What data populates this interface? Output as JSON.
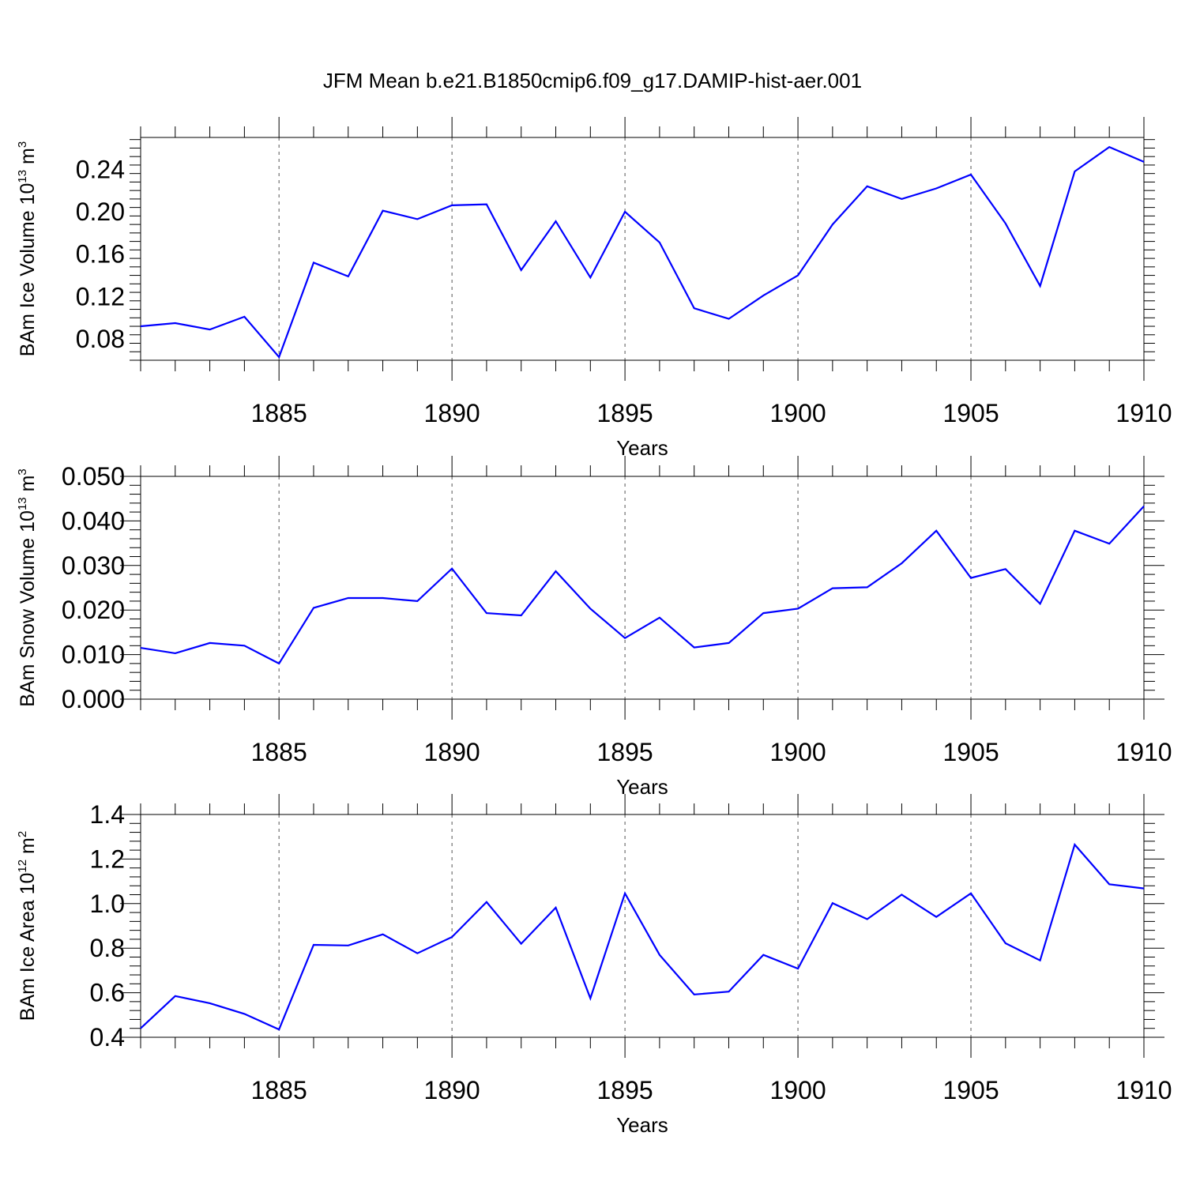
{
  "title": "JFM Mean b.e21.B1850cmip6.f09_g17.DAMIP-hist-aer.001",
  "colors": {
    "series": "#0000ff",
    "axes": "#000000",
    "grid": "#555555"
  },
  "chart_data": [
    {
      "type": "line",
      "ylabel_main": "BAm Ice Volume 10",
      "ylabel_exp": "13",
      "ylabel_unit": " m",
      "ylabel_unit_exp": "3",
      "xlabel": "Years",
      "xlim": [
        1881,
        1910
      ],
      "ylim": [
        0.06,
        0.27
      ],
      "yticks": [
        0.08,
        0.12,
        0.16,
        0.2,
        0.24
      ],
      "ytick_labels": [
        "0.08",
        "0.12",
        "0.16",
        "0.20",
        "0.24"
      ],
      "xticks": [
        1885,
        1890,
        1895,
        1900,
        1905,
        1910
      ],
      "xtick_labels": [
        "1885",
        "1890",
        "1895",
        "1900",
        "1905",
        "1910"
      ],
      "x": [
        1881,
        1882,
        1883,
        1884,
        1885,
        1886,
        1887,
        1888,
        1889,
        1890,
        1891,
        1892,
        1893,
        1894,
        1895,
        1896,
        1897,
        1898,
        1899,
        1900,
        1901,
        1902,
        1903,
        1904,
        1905,
        1906,
        1907,
        1908,
        1909,
        1910
      ],
      "series": [
        {
          "name": "BAm Ice Volume",
          "values": [
            0.092,
            0.095,
            0.089,
            0.101,
            0.063,
            0.152,
            0.139,
            0.201,
            0.193,
            0.206,
            0.207,
            0.145,
            0.191,
            0.138,
            0.2,
            0.171,
            0.109,
            0.099,
            0.121,
            0.14,
            0.188,
            0.224,
            0.212,
            0.222,
            0.235,
            0.189,
            0.13,
            0.238,
            0.261,
            0.247
          ]
        }
      ]
    },
    {
      "type": "line",
      "ylabel_main": "BAm Snow Volume 10",
      "ylabel_exp": "13",
      "ylabel_unit": " m",
      "ylabel_unit_exp": "3",
      "xlabel": "Years",
      "xlim": [
        1881,
        1910
      ],
      "ylim": [
        0.0,
        0.05
      ],
      "yticks": [
        0.0,
        0.01,
        0.02,
        0.03,
        0.04,
        0.05
      ],
      "ytick_labels": [
        "0.000",
        "0.010",
        "0.020",
        "0.030",
        "0.040",
        "0.050"
      ],
      "xticks": [
        1885,
        1890,
        1895,
        1900,
        1905,
        1910
      ],
      "xtick_labels": [
        "1885",
        "1890",
        "1895",
        "1900",
        "1905",
        "1910"
      ],
      "x": [
        1881,
        1882,
        1883,
        1884,
        1885,
        1886,
        1887,
        1888,
        1889,
        1890,
        1891,
        1892,
        1893,
        1894,
        1895,
        1896,
        1897,
        1898,
        1899,
        1900,
        1901,
        1902,
        1903,
        1904,
        1905,
        1906,
        1907,
        1908,
        1909,
        1910
      ],
      "series": [
        {
          "name": "BAm Snow Volume",
          "values": [
            0.0115,
            0.0103,
            0.0126,
            0.012,
            0.008,
            0.0205,
            0.0227,
            0.0227,
            0.022,
            0.0293,
            0.0193,
            0.0188,
            0.0287,
            0.0203,
            0.0137,
            0.0183,
            0.0116,
            0.0126,
            0.0193,
            0.0203,
            0.0249,
            0.0251,
            0.0305,
            0.0378,
            0.0272,
            0.0292,
            0.0214,
            0.0378,
            0.0349,
            0.0433
          ]
        }
      ]
    },
    {
      "type": "line",
      "ylabel_main": "BAm Ice Area 10",
      "ylabel_exp": "12",
      "ylabel_unit": " m",
      "ylabel_unit_exp": "2",
      "xlabel": "Years",
      "xlim": [
        1881,
        1910
      ],
      "ylim": [
        0.4,
        1.4
      ],
      "yticks": [
        0.4,
        0.6,
        0.8,
        1.0,
        1.2,
        1.4
      ],
      "ytick_labels": [
        "0.4",
        "0.6",
        "0.8",
        "1.0",
        "1.2",
        "1.4"
      ],
      "xticks": [
        1885,
        1890,
        1895,
        1900,
        1905,
        1910
      ],
      "xtick_labels": [
        "1885",
        "1890",
        "1895",
        "1900",
        "1905",
        "1910"
      ],
      "x": [
        1881,
        1882,
        1883,
        1884,
        1885,
        1886,
        1887,
        1888,
        1889,
        1890,
        1891,
        1892,
        1893,
        1894,
        1895,
        1896,
        1897,
        1898,
        1899,
        1900,
        1901,
        1902,
        1903,
        1904,
        1905,
        1906,
        1907,
        1908,
        1909,
        1910
      ],
      "series": [
        {
          "name": "BAm Ice Area",
          "values": [
            0.44,
            0.585,
            0.553,
            0.505,
            0.435,
            0.815,
            0.812,
            0.862,
            0.777,
            0.85,
            1.007,
            0.82,
            0.982,
            0.575,
            1.046,
            0.77,
            0.592,
            0.605,
            0.77,
            0.708,
            1.002,
            0.93,
            1.04,
            0.94,
            1.046,
            0.822,
            0.745,
            1.265,
            1.087,
            1.068
          ]
        }
      ]
    }
  ]
}
